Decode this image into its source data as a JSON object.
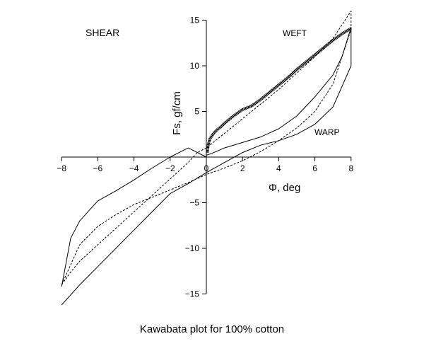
{
  "chart_data": {
    "type": "line",
    "title": "Kawabata plot for 100% cotton",
    "panel_label": "SHEAR",
    "xlabel": "Φ, deg",
    "ylabel": "Fs, gf/cm",
    "xlim": [
      -8,
      8
    ],
    "ylim": [
      -15,
      15
    ],
    "xticks": [
      -8,
      -6,
      -4,
      -2,
      0,
      2,
      4,
      6,
      8
    ],
    "yticks": [
      -15,
      -10,
      -5,
      0,
      5,
      10,
      15
    ],
    "xtick_labels": [
      "−8",
      "−6",
      "−4",
      "−2",
      "0",
      "2",
      "4",
      "6",
      "8"
    ],
    "ytick_labels": [
      "−15",
      "−10",
      "−5",
      "0",
      "5",
      "10",
      "15"
    ],
    "grid": false,
    "annotations": [
      "WEFT",
      "WARP"
    ],
    "series": [
      {
        "name": "WEFT",
        "style": "dashed",
        "x": [
          -8,
          -7.5,
          -7,
          -6,
          -5,
          -4,
          -3,
          -2,
          -1,
          -0.5,
          0,
          1,
          2,
          3,
          4,
          5,
          6,
          7,
          8,
          8,
          7,
          6,
          5,
          4,
          3,
          2,
          1,
          0,
          -1,
          -2,
          -3,
          -4,
          -5,
          -6,
          -7,
          -8
        ],
        "y": [
          -14.0,
          -12.6,
          -11.4,
          -9.6,
          -7.8,
          -6.0,
          -4.2,
          -2.4,
          -0.6,
          0.5,
          1.0,
          2.6,
          4.2,
          5.8,
          7.4,
          9.2,
          11.0,
          13.0,
          16.0,
          14.0,
          8.0,
          5.0,
          3.2,
          1.8,
          0.6,
          -0.4,
          -1.2,
          -1.9,
          -2.8,
          -3.6,
          -4.4,
          -5.2,
          -6.3,
          -7.6,
          -9.6,
          -14.0
        ]
      },
      {
        "name": "WARP",
        "style": "solid",
        "x": [
          -8,
          -7.5,
          -7,
          -6,
          -5,
          -4,
          -3,
          -2,
          -1,
          0,
          1,
          2,
          3,
          4,
          5,
          6,
          7,
          8,
          8,
          7.5,
          7,
          6,
          5,
          4,
          3,
          2,
          1,
          0.3,
          0,
          0,
          -1,
          -2,
          -3,
          -4,
          -5,
          -6,
          -7,
          -7.5,
          -8
        ],
        "y": [
          -16.2,
          -15.1,
          -14.0,
          -12.0,
          -10.0,
          -8.0,
          -6.0,
          -4.0,
          -2.9,
          -1.7,
          -0.6,
          0.5,
          1.3,
          1.8,
          2.5,
          3.6,
          5.5,
          10.0,
          14.2,
          11.0,
          9.0,
          6.6,
          4.5,
          3.1,
          2.2,
          1.6,
          1.0,
          0.4,
          0.2,
          0.0,
          1.0,
          0.0,
          -1.2,
          -2.5,
          -3.7,
          -4.8,
          -7.0,
          -8.9,
          -14.2
        ]
      },
      {
        "name": "",
        "style": "thick-noisy",
        "x": [
          0.05,
          0.1,
          0.2,
          0.4,
          0.6,
          0.8,
          1.0,
          1.5,
          2.0,
          2.5,
          3.0,
          3.5,
          4.0,
          4.5,
          5.0,
          5.5,
          6.0,
          6.5,
          7.0,
          7.5,
          8.0
        ],
        "y": [
          0.5,
          1.3,
          2.0,
          2.6,
          3.0,
          3.3,
          3.7,
          4.5,
          5.2,
          5.6,
          6.3,
          7.1,
          7.9,
          8.7,
          9.6,
          10.4,
          11.2,
          12.0,
          12.8,
          13.5,
          14.1
        ]
      }
    ]
  }
}
